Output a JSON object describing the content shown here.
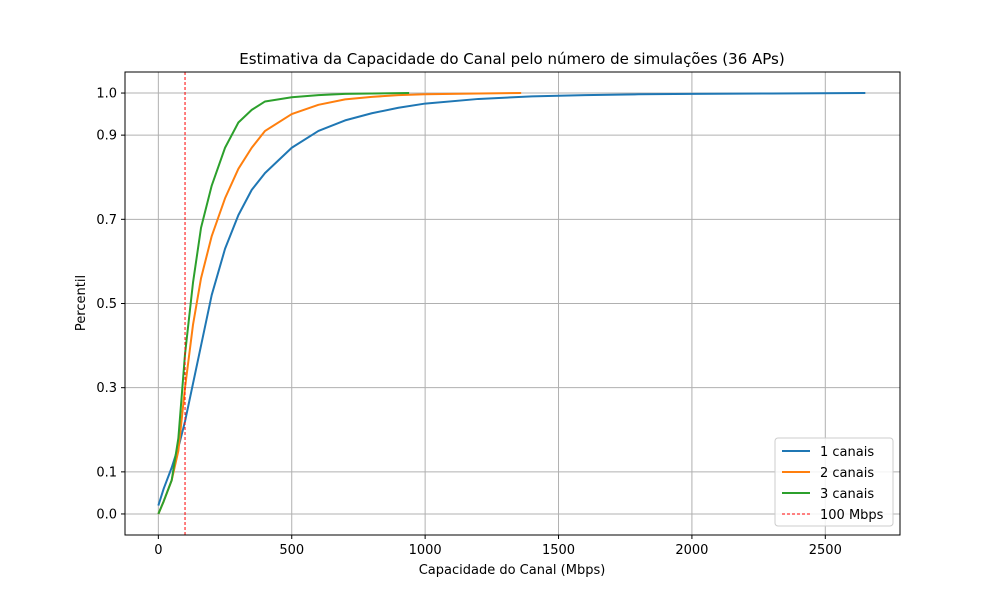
{
  "chart_data": {
    "type": "line",
    "title": "Estimativa da Capacidade do Canal pelo número de simulações (36 APs)",
    "xlabel": "Capacidade do Canal (Mbps)",
    "ylabel": "Percentil",
    "xlim": [
      -125,
      2780
    ],
    "ylim": [
      -0.05,
      1.05
    ],
    "xticks": [
      0,
      500,
      1000,
      1500,
      2000,
      2500
    ],
    "yticks": [
      0.0,
      0.1,
      0.3,
      0.5,
      0.7,
      0.9,
      1.0
    ],
    "ytick_labels": [
      "0.0",
      "0.1",
      "0.3",
      "0.5",
      "0.7",
      "0.9",
      "1.0"
    ],
    "grid": true,
    "legend_position": "lower-right",
    "series": [
      {
        "name": "1 canais",
        "color": "#1f77b4",
        "points": [
          [
            0,
            0.02
          ],
          [
            20,
            0.06
          ],
          [
            50,
            0.11
          ],
          [
            80,
            0.17
          ],
          [
            100,
            0.22
          ],
          [
            130,
            0.31
          ],
          [
            160,
            0.4
          ],
          [
            200,
            0.52
          ],
          [
            250,
            0.63
          ],
          [
            300,
            0.71
          ],
          [
            350,
            0.77
          ],
          [
            400,
            0.81
          ],
          [
            500,
            0.87
          ],
          [
            600,
            0.91
          ],
          [
            700,
            0.935
          ],
          [
            800,
            0.952
          ],
          [
            900,
            0.965
          ],
          [
            1000,
            0.975
          ],
          [
            1200,
            0.986
          ],
          [
            1400,
            0.992
          ],
          [
            1600,
            0.995
          ],
          [
            1800,
            0.997
          ],
          [
            2000,
            0.998
          ],
          [
            2300,
            0.999
          ],
          [
            2650,
            1.0
          ]
        ]
      },
      {
        "name": "2 canais",
        "color": "#ff7f0e",
        "points": [
          [
            0,
            0.0
          ],
          [
            20,
            0.03
          ],
          [
            50,
            0.08
          ],
          [
            75,
            0.15
          ],
          [
            100,
            0.3
          ],
          [
            130,
            0.45
          ],
          [
            160,
            0.56
          ],
          [
            200,
            0.66
          ],
          [
            250,
            0.75
          ],
          [
            300,
            0.82
          ],
          [
            350,
            0.87
          ],
          [
            400,
            0.91
          ],
          [
            500,
            0.95
          ],
          [
            600,
            0.972
          ],
          [
            700,
            0.985
          ],
          [
            800,
            0.991
          ],
          [
            900,
            0.995
          ],
          [
            1000,
            0.997
          ],
          [
            1200,
            0.999
          ],
          [
            1360,
            1.0
          ]
        ]
      },
      {
        "name": "3 canais",
        "color": "#2ca02c",
        "points": [
          [
            0,
            0.0
          ],
          [
            20,
            0.03
          ],
          [
            50,
            0.08
          ],
          [
            75,
            0.18
          ],
          [
            100,
            0.38
          ],
          [
            130,
            0.55
          ],
          [
            160,
            0.68
          ],
          [
            200,
            0.78
          ],
          [
            250,
            0.87
          ],
          [
            300,
            0.93
          ],
          [
            350,
            0.96
          ],
          [
            400,
            0.98
          ],
          [
            500,
            0.99
          ],
          [
            600,
            0.995
          ],
          [
            700,
            0.998
          ],
          [
            800,
            0.999
          ],
          [
            940,
            1.0
          ]
        ]
      }
    ],
    "reference_line": {
      "name": "100 Mbps",
      "x": 100,
      "color": "#ff0000",
      "style": "dashed"
    }
  }
}
